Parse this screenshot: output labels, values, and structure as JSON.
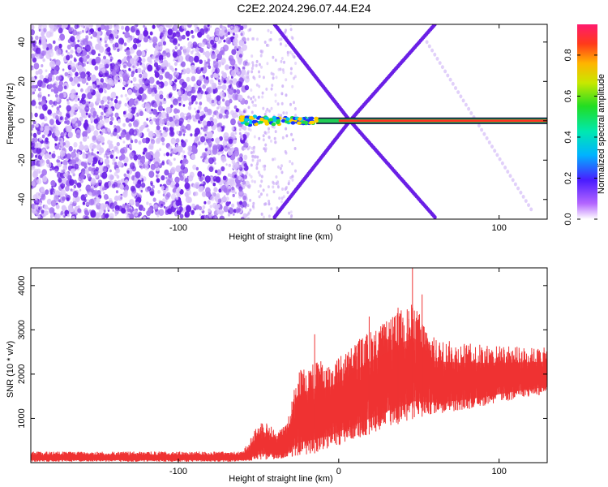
{
  "title": "C2E2.2024.296.07.44.E24",
  "chart_data": [
    {
      "type": "heatmap",
      "xlabel": "Height of straight line (km)",
      "ylabel": "Frequency (Hz)",
      "xlim": [
        -192,
        130
      ],
      "ylim": [
        -50,
        49
      ],
      "xticks": [
        -100,
        0,
        100
      ],
      "yticks": [
        -40,
        -20,
        0,
        20,
        40
      ],
      "colorbar": {
        "label": "Normalized spectral amplitude",
        "range": [
          0.0,
          0.95
        ],
        "ticks": [
          0.0,
          0.2,
          0.4,
          0.6,
          0.8
        ]
      },
      "features": {
        "noise_region_x": [
          -192,
          -57
        ],
        "carrier_line": {
          "x": [
            -62,
            130
          ],
          "frequency": 0
        },
        "crossing_point": {
          "x": 7,
          "frequency": 0
        },
        "diagonal_lines": [
          {
            "from": [
              -40,
              49
            ],
            "to": [
              7,
              0
            ]
          },
          {
            "from": [
              7,
              0
            ],
            "to": [
              60,
              49
            ]
          },
          {
            "from": [
              -40,
              -49
            ],
            "to": [
              7,
              0
            ]
          },
          {
            "from": [
              7,
              0
            ],
            "to": [
              60,
              -49
            ]
          }
        ]
      }
    },
    {
      "type": "line",
      "xlabel": "Height of straight line (km)",
      "ylabel": "SNR (10 * v/v)",
      "xlim": [
        -192,
        130
      ],
      "ylim": [
        0,
        4400
      ],
      "xticks": [
        -100,
        0,
        100
      ],
      "yticks": [
        1000,
        2000,
        3000,
        4000
      ],
      "color": "#ee3333",
      "envelope": [
        {
          "x": -192,
          "low": 20,
          "high": 250
        },
        {
          "x": -60,
          "low": 20,
          "high": 250
        },
        {
          "x": -48,
          "low": 60,
          "high": 1000
        },
        {
          "x": -38,
          "low": 80,
          "high": 700
        },
        {
          "x": -32,
          "low": 100,
          "high": 900
        },
        {
          "x": -26,
          "low": 150,
          "high": 2100
        },
        {
          "x": -16,
          "low": 200,
          "high": 2300
        },
        {
          "x": -6,
          "low": 300,
          "high": 2300
        },
        {
          "x": 4,
          "low": 450,
          "high": 2500
        },
        {
          "x": 12,
          "low": 550,
          "high": 2800
        },
        {
          "x": 20,
          "low": 650,
          "high": 3000
        },
        {
          "x": 30,
          "low": 800,
          "high": 3200
        },
        {
          "x": 40,
          "low": 900,
          "high": 3500
        },
        {
          "x": 47,
          "low": 1000,
          "high": 3600
        },
        {
          "x": 60,
          "low": 1100,
          "high": 2800
        },
        {
          "x": 80,
          "low": 1200,
          "high": 2700
        },
        {
          "x": 100,
          "low": 1350,
          "high": 2650
        },
        {
          "x": 120,
          "low": 1500,
          "high": 2600
        },
        {
          "x": 130,
          "low": 1550,
          "high": 2600
        }
      ],
      "spikes": [
        {
          "x": -15,
          "y": 2900
        },
        {
          "x": 19,
          "y": 3300
        },
        {
          "x": 46,
          "y": 4400
        },
        {
          "x": 52,
          "y": 3800
        },
        {
          "x": 37,
          "y": 3500
        }
      ]
    }
  ]
}
